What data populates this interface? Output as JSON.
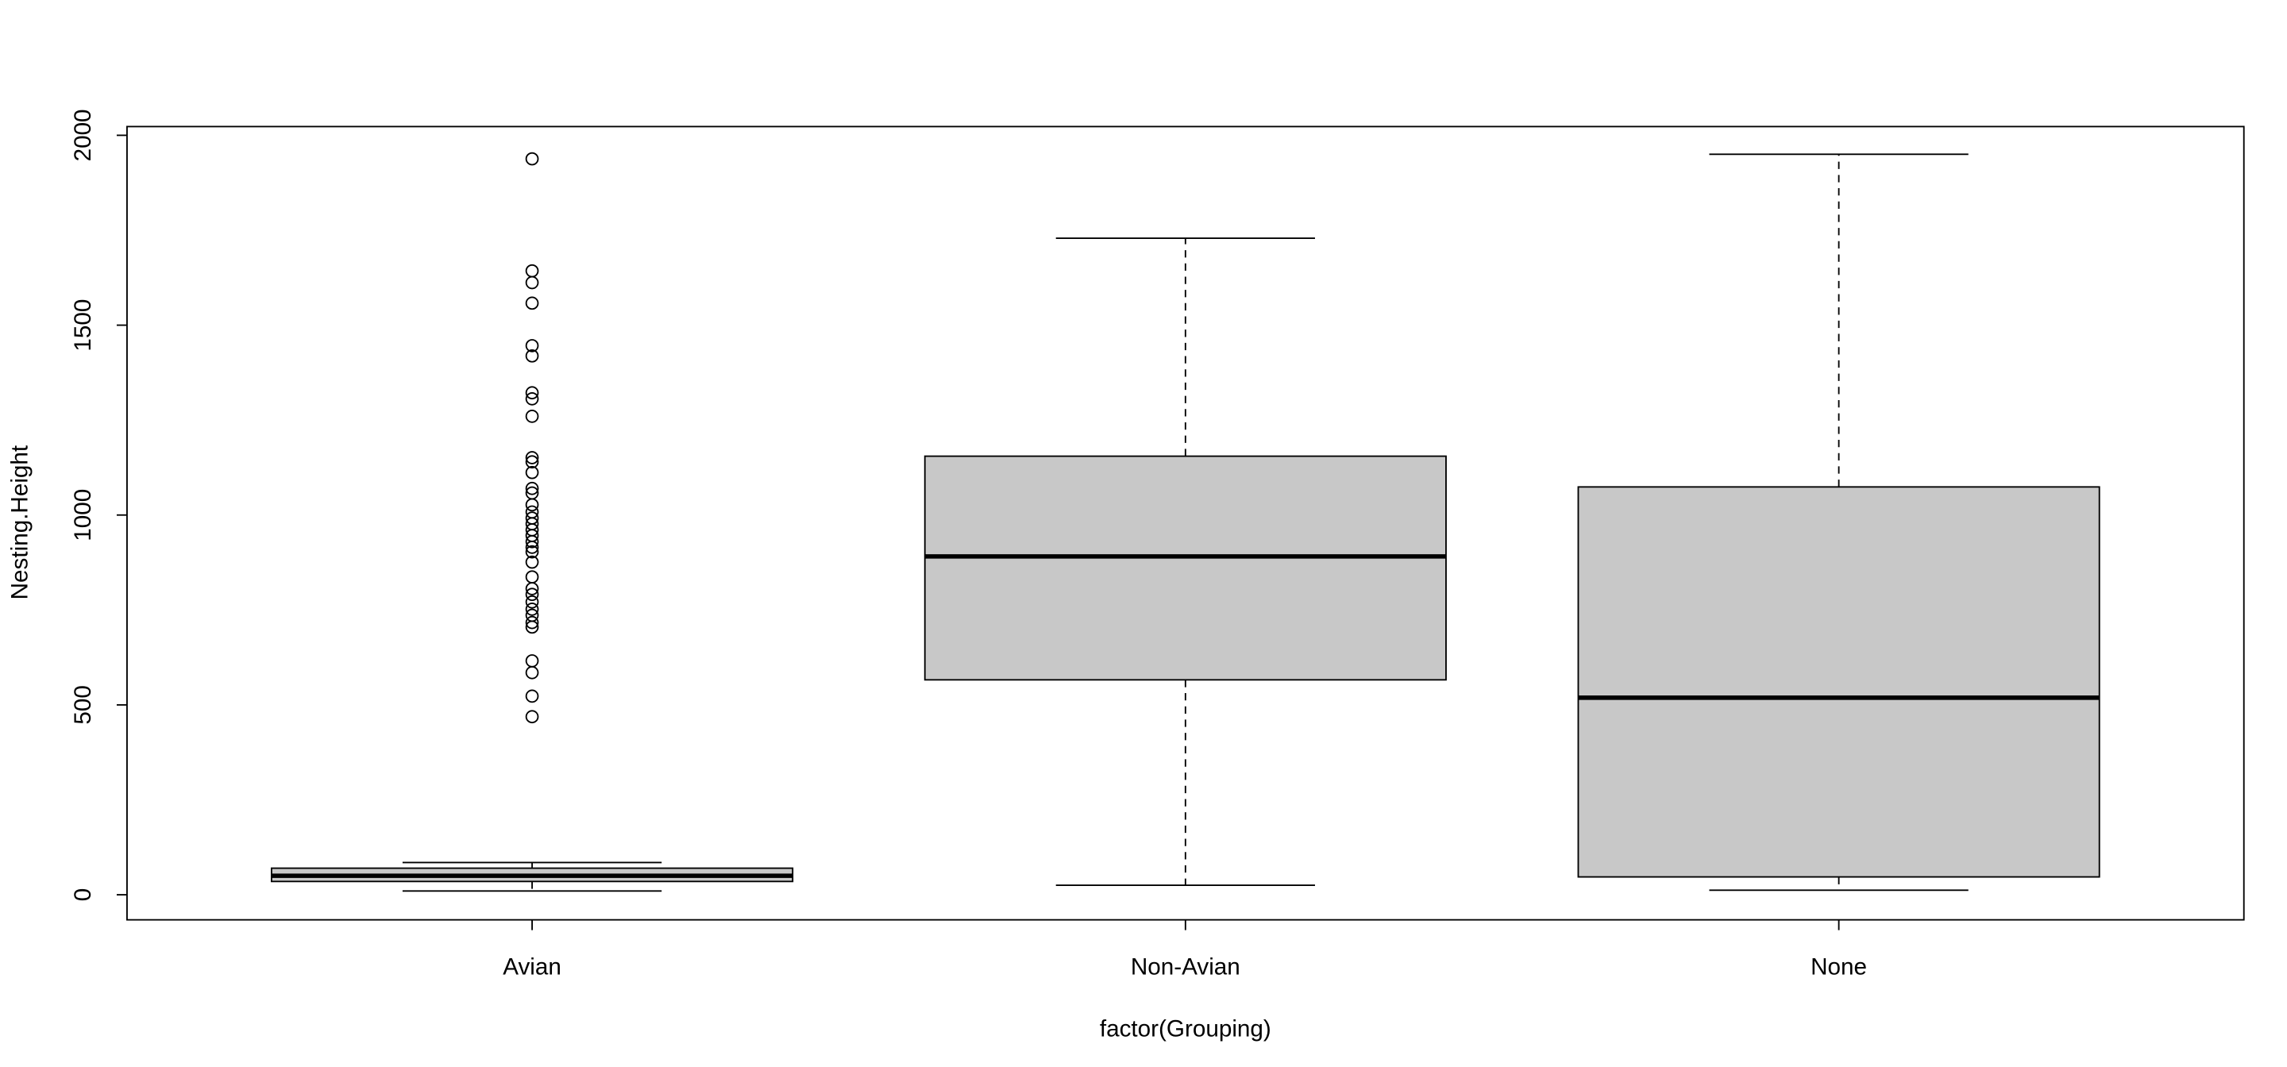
{
  "chart_data": {
    "type": "box",
    "xlabel": "factor(Grouping)",
    "ylabel": "Nesting.Height",
    "categories": [
      "Avian",
      "Non-Avian",
      "None"
    ],
    "color": "#c8c8c8",
    "ylim": [
      -66,
      2023
    ],
    "yticks": [
      0,
      500,
      1000,
      1500,
      2000
    ],
    "boxes": [
      {
        "whislo": 10,
        "q1": 35,
        "med": 50,
        "q3": 70,
        "whishi": 85,
        "fliers": [
          1938,
          1643,
          1612,
          1558,
          1446,
          1419,
          1322,
          1306,
          1260,
          1151,
          1140,
          1112,
          1070,
          1058,
          1027,
          1008,
          992,
          977,
          961,
          946,
          930,
          915,
          903,
          876,
          837,
          806,
          791,
          771,
          752,
          736,
          717,
          705,
          616,
          585,
          523,
          469
        ]
      },
      {
        "whislo": 25,
        "q1": 566,
        "med": 891,
        "q3": 1155,
        "whishi": 1729,
        "fliers": []
      },
      {
        "whislo": 12,
        "q1": 47,
        "med": 519,
        "q3": 1074,
        "whishi": 1950,
        "fliers": []
      }
    ]
  }
}
